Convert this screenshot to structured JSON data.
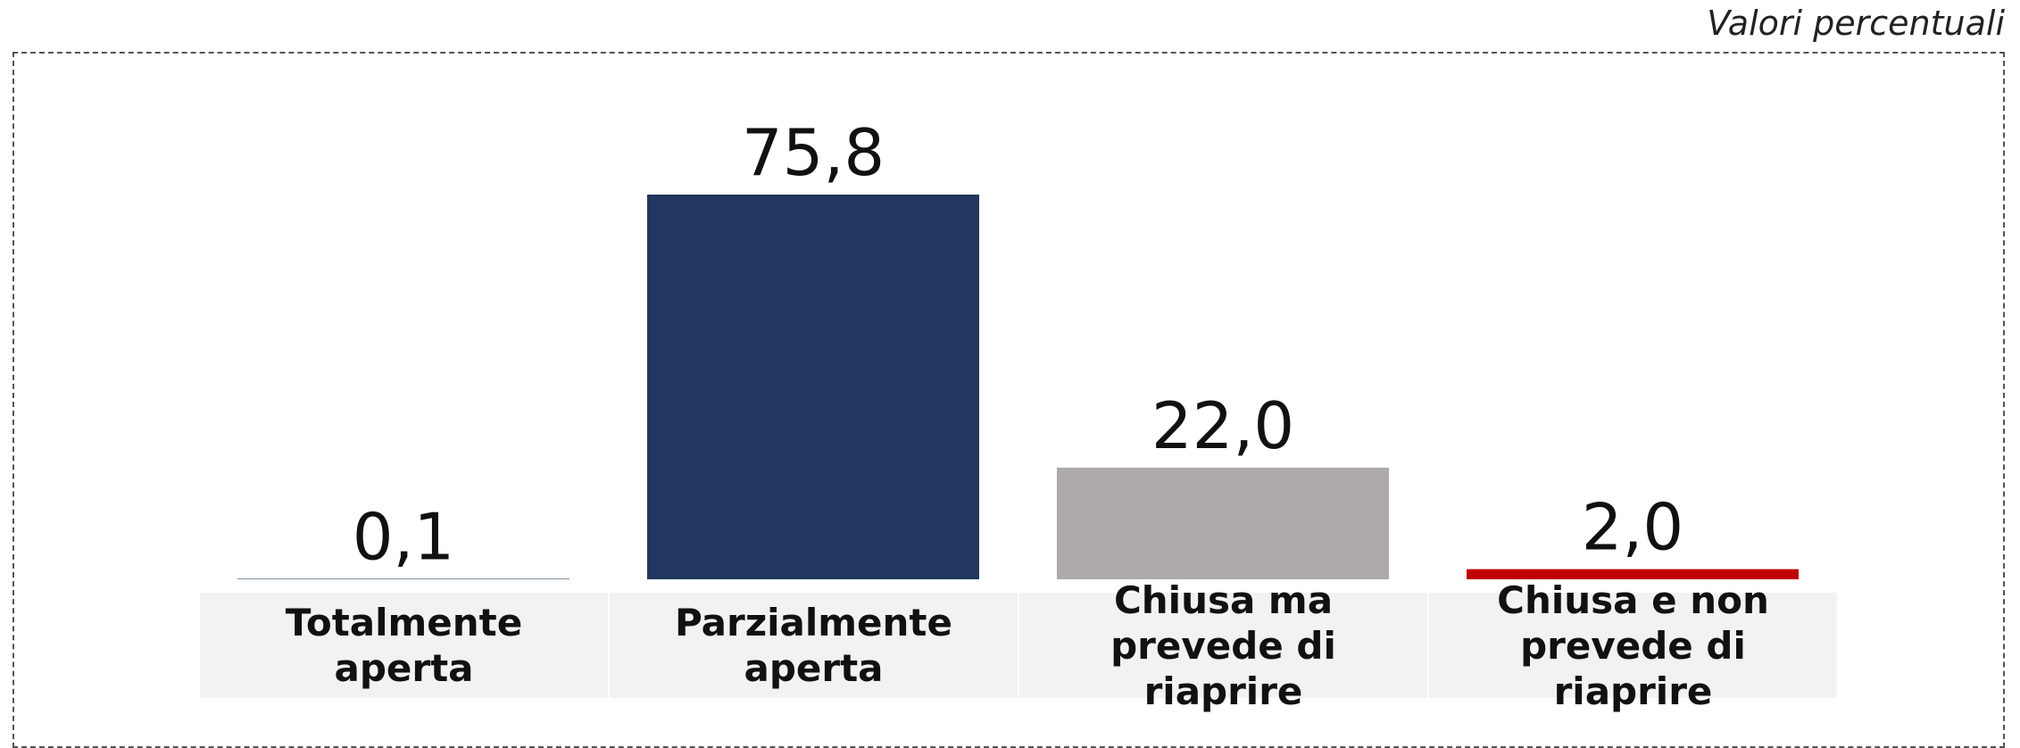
{
  "subtitle": "Valori percentuali",
  "chart_data": {
    "type": "bar",
    "categories": [
      "Totalmente aperta",
      "Parzialmente aperta",
      "Chiusa ma prevede di riaprire",
      "Chiusa e non prevede di riaprire"
    ],
    "values": [
      0.1,
      75.8,
      22.0,
      2.0
    ],
    "value_labels": [
      "0,1",
      "75,8",
      "22,0",
      "2,0"
    ],
    "colors": [
      "#22375f",
      "#22375f",
      "#aeaaa9",
      "#c00000"
    ]
  }
}
